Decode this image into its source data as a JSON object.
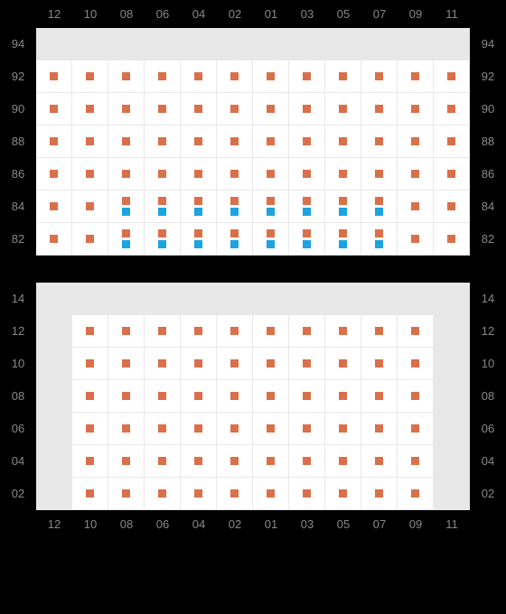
{
  "colors": {
    "orange": "#d9704a",
    "blue": "#1ca4e0",
    "cellWhite": "#ffffff",
    "cellGray": "#e8e8e8",
    "labelColor": "#888888",
    "bg": "#000000"
  },
  "columns": [
    "12",
    "10",
    "08",
    "06",
    "04",
    "02",
    "01",
    "03",
    "05",
    "07",
    "09",
    "11"
  ],
  "topSection": {
    "rowLabels": [
      "94",
      "92",
      "90",
      "88",
      "86",
      "84",
      "82"
    ],
    "rows": [
      {
        "cells": [
          {
            "t": "g"
          },
          {
            "t": "g"
          },
          {
            "t": "g"
          },
          {
            "t": "g"
          },
          {
            "t": "g"
          },
          {
            "t": "g"
          },
          {
            "t": "g"
          },
          {
            "t": "g"
          },
          {
            "t": "g"
          },
          {
            "t": "g"
          },
          {
            "t": "g"
          },
          {
            "t": "g"
          }
        ]
      },
      {
        "cells": [
          {
            "t": "w",
            "m": [
              "o"
            ]
          },
          {
            "t": "w",
            "m": [
              "o"
            ]
          },
          {
            "t": "w",
            "m": [
              "o"
            ]
          },
          {
            "t": "w",
            "m": [
              "o"
            ]
          },
          {
            "t": "w",
            "m": [
              "o"
            ]
          },
          {
            "t": "w",
            "m": [
              "o"
            ]
          },
          {
            "t": "w",
            "m": [
              "o"
            ]
          },
          {
            "t": "w",
            "m": [
              "o"
            ]
          },
          {
            "t": "w",
            "m": [
              "o"
            ]
          },
          {
            "t": "w",
            "m": [
              "o"
            ]
          },
          {
            "t": "w",
            "m": [
              "o"
            ]
          },
          {
            "t": "w",
            "m": [
              "o"
            ]
          }
        ]
      },
      {
        "cells": [
          {
            "t": "w",
            "m": [
              "o"
            ]
          },
          {
            "t": "w",
            "m": [
              "o"
            ]
          },
          {
            "t": "w",
            "m": [
              "o"
            ]
          },
          {
            "t": "w",
            "m": [
              "o"
            ]
          },
          {
            "t": "w",
            "m": [
              "o"
            ]
          },
          {
            "t": "w",
            "m": [
              "o"
            ]
          },
          {
            "t": "w",
            "m": [
              "o"
            ]
          },
          {
            "t": "w",
            "m": [
              "o"
            ]
          },
          {
            "t": "w",
            "m": [
              "o"
            ]
          },
          {
            "t": "w",
            "m": [
              "o"
            ]
          },
          {
            "t": "w",
            "m": [
              "o"
            ]
          },
          {
            "t": "w",
            "m": [
              "o"
            ]
          }
        ]
      },
      {
        "cells": [
          {
            "t": "w",
            "m": [
              "o"
            ]
          },
          {
            "t": "w",
            "m": [
              "o"
            ]
          },
          {
            "t": "w",
            "m": [
              "o"
            ]
          },
          {
            "t": "w",
            "m": [
              "o"
            ]
          },
          {
            "t": "w",
            "m": [
              "o"
            ]
          },
          {
            "t": "w",
            "m": [
              "o"
            ]
          },
          {
            "t": "w",
            "m": [
              "o"
            ]
          },
          {
            "t": "w",
            "m": [
              "o"
            ]
          },
          {
            "t": "w",
            "m": [
              "o"
            ]
          },
          {
            "t": "w",
            "m": [
              "o"
            ]
          },
          {
            "t": "w",
            "m": [
              "o"
            ]
          },
          {
            "t": "w",
            "m": [
              "o"
            ]
          }
        ]
      },
      {
        "cells": [
          {
            "t": "w",
            "m": [
              "o"
            ]
          },
          {
            "t": "w",
            "m": [
              "o"
            ]
          },
          {
            "t": "w",
            "m": [
              "o"
            ]
          },
          {
            "t": "w",
            "m": [
              "o"
            ]
          },
          {
            "t": "w",
            "m": [
              "o"
            ]
          },
          {
            "t": "w",
            "m": [
              "o"
            ]
          },
          {
            "t": "w",
            "m": [
              "o"
            ]
          },
          {
            "t": "w",
            "m": [
              "o"
            ]
          },
          {
            "t": "w",
            "m": [
              "o"
            ]
          },
          {
            "t": "w",
            "m": [
              "o"
            ]
          },
          {
            "t": "w",
            "m": [
              "o"
            ]
          },
          {
            "t": "w",
            "m": [
              "o"
            ]
          }
        ]
      },
      {
        "cells": [
          {
            "t": "w",
            "m": [
              "o"
            ]
          },
          {
            "t": "w",
            "m": [
              "o"
            ]
          },
          {
            "t": "w",
            "m": [
              "o",
              "b"
            ]
          },
          {
            "t": "w",
            "m": [
              "o",
              "b"
            ]
          },
          {
            "t": "w",
            "m": [
              "o",
              "b"
            ]
          },
          {
            "t": "w",
            "m": [
              "o",
              "b"
            ]
          },
          {
            "t": "w",
            "m": [
              "o",
              "b"
            ]
          },
          {
            "t": "w",
            "m": [
              "o",
              "b"
            ]
          },
          {
            "t": "w",
            "m": [
              "o",
              "b"
            ]
          },
          {
            "t": "w",
            "m": [
              "o",
              "b"
            ]
          },
          {
            "t": "w",
            "m": [
              "o"
            ]
          },
          {
            "t": "w",
            "m": [
              "o"
            ]
          }
        ]
      },
      {
        "cells": [
          {
            "t": "w",
            "m": [
              "o"
            ]
          },
          {
            "t": "w",
            "m": [
              "o"
            ]
          },
          {
            "t": "w",
            "m": [
              "o",
              "b"
            ]
          },
          {
            "t": "w",
            "m": [
              "o",
              "b"
            ]
          },
          {
            "t": "w",
            "m": [
              "o",
              "b"
            ]
          },
          {
            "t": "w",
            "m": [
              "o",
              "b"
            ]
          },
          {
            "t": "w",
            "m": [
              "o",
              "b"
            ]
          },
          {
            "t": "w",
            "m": [
              "o",
              "b"
            ]
          },
          {
            "t": "w",
            "m": [
              "o",
              "b"
            ]
          },
          {
            "t": "w",
            "m": [
              "o",
              "b"
            ]
          },
          {
            "t": "w",
            "m": [
              "o"
            ]
          },
          {
            "t": "w",
            "m": [
              "o"
            ]
          }
        ]
      }
    ]
  },
  "bottomSection": {
    "rowLabels": [
      "14",
      "12",
      "10",
      "08",
      "06",
      "04",
      "02"
    ],
    "rows": [
      {
        "cells": [
          {
            "t": "g"
          },
          {
            "t": "g"
          },
          {
            "t": "g"
          },
          {
            "t": "g"
          },
          {
            "t": "g"
          },
          {
            "t": "g"
          },
          {
            "t": "g"
          },
          {
            "t": "g"
          },
          {
            "t": "g"
          },
          {
            "t": "g"
          },
          {
            "t": "g"
          },
          {
            "t": "g"
          }
        ]
      },
      {
        "cells": [
          {
            "t": "g"
          },
          {
            "t": "w",
            "m": [
              "o"
            ]
          },
          {
            "t": "w",
            "m": [
              "o"
            ]
          },
          {
            "t": "w",
            "m": [
              "o"
            ]
          },
          {
            "t": "w",
            "m": [
              "o"
            ]
          },
          {
            "t": "w",
            "m": [
              "o"
            ]
          },
          {
            "t": "w",
            "m": [
              "o"
            ]
          },
          {
            "t": "w",
            "m": [
              "o"
            ]
          },
          {
            "t": "w",
            "m": [
              "o"
            ]
          },
          {
            "t": "w",
            "m": [
              "o"
            ]
          },
          {
            "t": "w",
            "m": [
              "o"
            ]
          },
          {
            "t": "g"
          }
        ]
      },
      {
        "cells": [
          {
            "t": "g"
          },
          {
            "t": "w",
            "m": [
              "o"
            ]
          },
          {
            "t": "w",
            "m": [
              "o"
            ]
          },
          {
            "t": "w",
            "m": [
              "o"
            ]
          },
          {
            "t": "w",
            "m": [
              "o"
            ]
          },
          {
            "t": "w",
            "m": [
              "o"
            ]
          },
          {
            "t": "w",
            "m": [
              "o"
            ]
          },
          {
            "t": "w",
            "m": [
              "o"
            ]
          },
          {
            "t": "w",
            "m": [
              "o"
            ]
          },
          {
            "t": "w",
            "m": [
              "o"
            ]
          },
          {
            "t": "w",
            "m": [
              "o"
            ]
          },
          {
            "t": "g"
          }
        ]
      },
      {
        "cells": [
          {
            "t": "g"
          },
          {
            "t": "w",
            "m": [
              "o"
            ]
          },
          {
            "t": "w",
            "m": [
              "o"
            ]
          },
          {
            "t": "w",
            "m": [
              "o"
            ]
          },
          {
            "t": "w",
            "m": [
              "o"
            ]
          },
          {
            "t": "w",
            "m": [
              "o"
            ]
          },
          {
            "t": "w",
            "m": [
              "o"
            ]
          },
          {
            "t": "w",
            "m": [
              "o"
            ]
          },
          {
            "t": "w",
            "m": [
              "o"
            ]
          },
          {
            "t": "w",
            "m": [
              "o"
            ]
          },
          {
            "t": "w",
            "m": [
              "o"
            ]
          },
          {
            "t": "g"
          }
        ]
      },
      {
        "cells": [
          {
            "t": "g"
          },
          {
            "t": "w",
            "m": [
              "o"
            ]
          },
          {
            "t": "w",
            "m": [
              "o"
            ]
          },
          {
            "t": "w",
            "m": [
              "o"
            ]
          },
          {
            "t": "w",
            "m": [
              "o"
            ]
          },
          {
            "t": "w",
            "m": [
              "o"
            ]
          },
          {
            "t": "w",
            "m": [
              "o"
            ]
          },
          {
            "t": "w",
            "m": [
              "o"
            ]
          },
          {
            "t": "w",
            "m": [
              "o"
            ]
          },
          {
            "t": "w",
            "m": [
              "o"
            ]
          },
          {
            "t": "w",
            "m": [
              "o"
            ]
          },
          {
            "t": "g"
          }
        ]
      },
      {
        "cells": [
          {
            "t": "g"
          },
          {
            "t": "w",
            "m": [
              "o"
            ]
          },
          {
            "t": "w",
            "m": [
              "o"
            ]
          },
          {
            "t": "w",
            "m": [
              "o"
            ]
          },
          {
            "t": "w",
            "m": [
              "o"
            ]
          },
          {
            "t": "w",
            "m": [
              "o"
            ]
          },
          {
            "t": "w",
            "m": [
              "o"
            ]
          },
          {
            "t": "w",
            "m": [
              "o"
            ]
          },
          {
            "t": "w",
            "m": [
              "o"
            ]
          },
          {
            "t": "w",
            "m": [
              "o"
            ]
          },
          {
            "t": "w",
            "m": [
              "o"
            ]
          },
          {
            "t": "g"
          }
        ]
      },
      {
        "cells": [
          {
            "t": "g"
          },
          {
            "t": "w",
            "m": [
              "o"
            ]
          },
          {
            "t": "w",
            "m": [
              "o"
            ]
          },
          {
            "t": "w",
            "m": [
              "o"
            ]
          },
          {
            "t": "w",
            "m": [
              "o"
            ]
          },
          {
            "t": "w",
            "m": [
              "o"
            ]
          },
          {
            "t": "w",
            "m": [
              "o"
            ]
          },
          {
            "t": "w",
            "m": [
              "o"
            ]
          },
          {
            "t": "w",
            "m": [
              "o"
            ]
          },
          {
            "t": "w",
            "m": [
              "o"
            ]
          },
          {
            "t": "w",
            "m": [
              "o"
            ]
          },
          {
            "t": "g"
          }
        ]
      }
    ]
  }
}
